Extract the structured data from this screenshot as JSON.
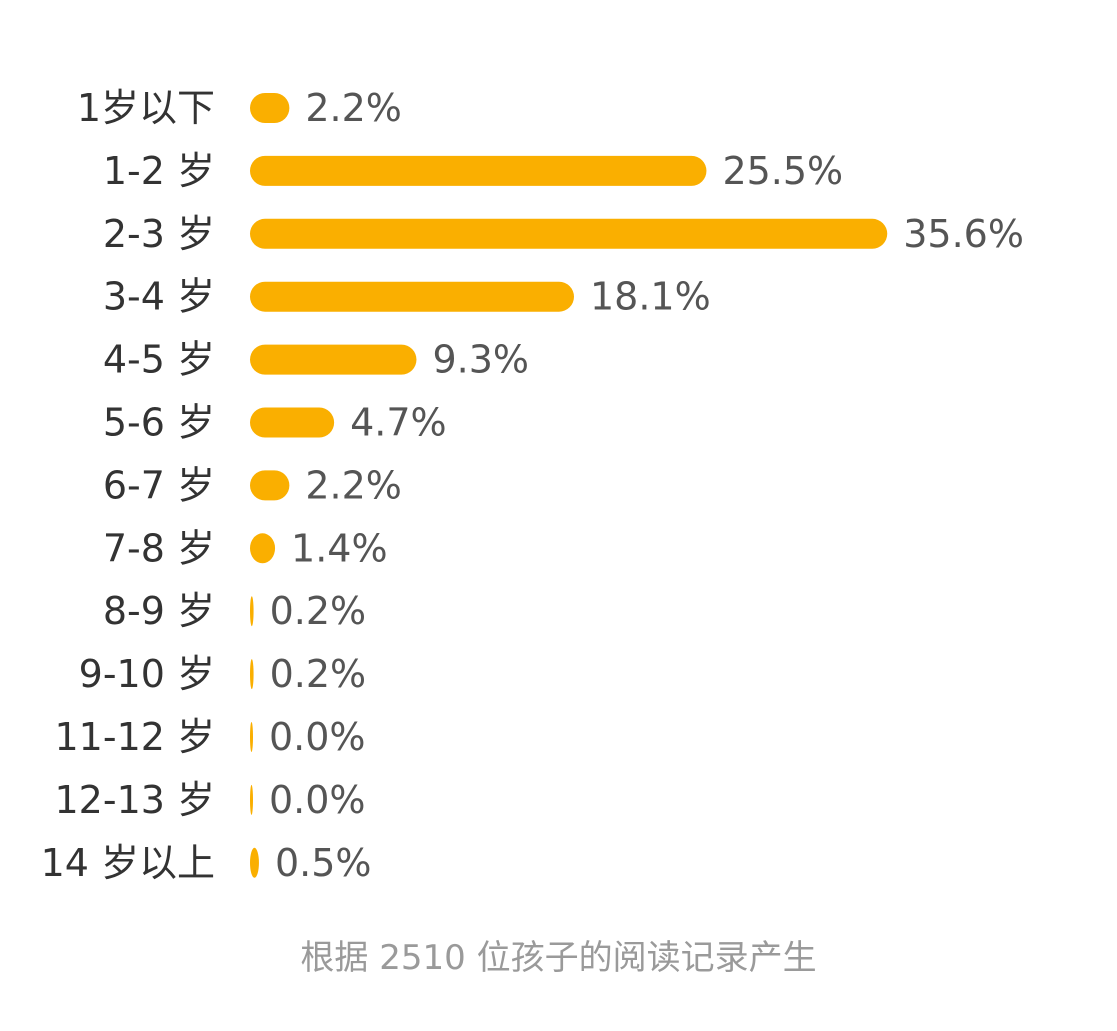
{
  "chart_data": {
    "type": "bar",
    "orientation": "horizontal",
    "categories": [
      "1岁以下",
      "1-2 岁",
      "2-3 岁",
      "3-4 岁",
      "4-5 岁",
      "5-6 岁",
      "6-7 岁",
      "7-8 岁",
      "8-9 岁",
      "9-10 岁",
      "11-12 岁",
      "12-13 岁",
      "14 岁以上"
    ],
    "values": [
      2.2,
      25.5,
      35.6,
      18.1,
      9.3,
      4.7,
      2.2,
      1.4,
      0.2,
      0.2,
      0.0,
      0.0,
      0.5
    ],
    "value_labels": [
      "2.2%",
      "25.5%",
      "35.6%",
      "18.1%",
      "9.3%",
      "4.7%",
      "2.2%",
      "1.4%",
      "0.2%",
      "0.2%",
      "0.0%",
      "0.0%",
      "0.5%"
    ],
    "bar_color": "#FAAF00",
    "grid": false,
    "legend": "none"
  },
  "footnote": "根据 2510 位孩子的阅读记录产生"
}
